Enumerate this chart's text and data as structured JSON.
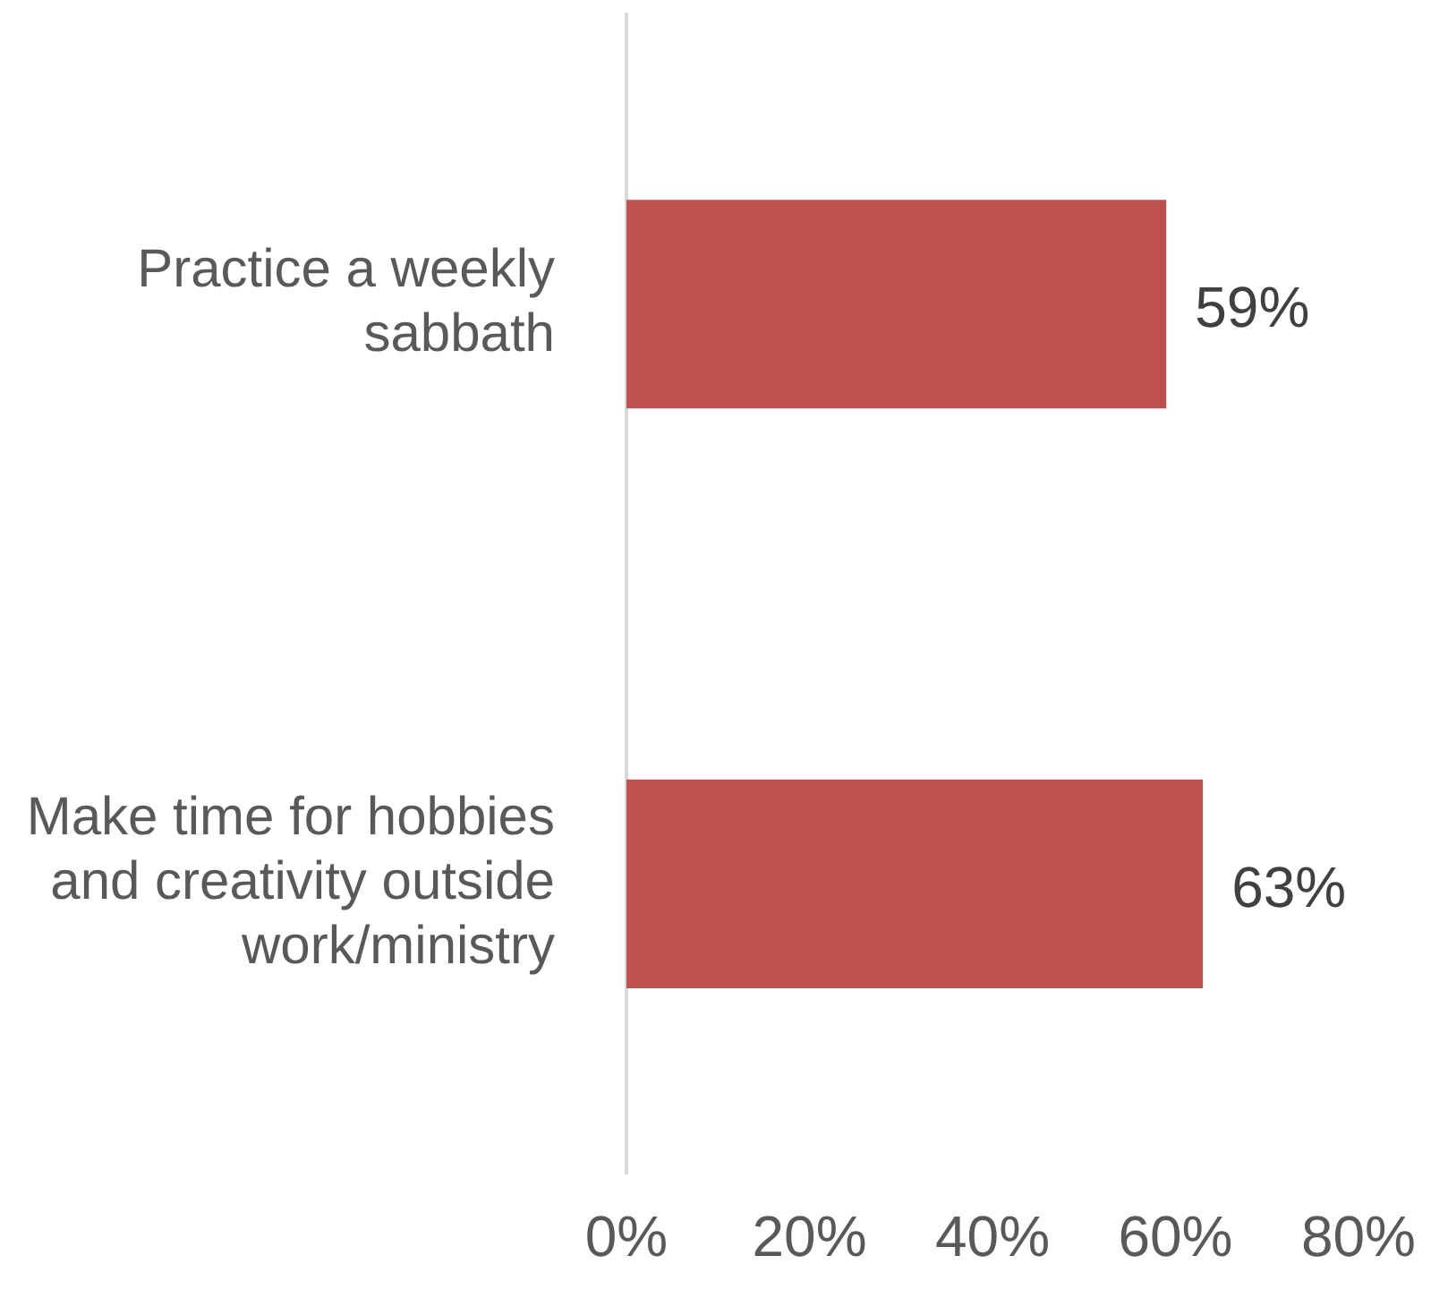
{
  "chart_data": {
    "type": "bar",
    "orientation": "horizontal",
    "categories": [
      "Practice a weekly sabbath",
      "Make time for hobbies and creativity outside work/ministry"
    ],
    "values": [
      59,
      63
    ],
    "color": "#c0504d",
    "value_labels": [
      "59%",
      "63%"
    ],
    "xlim": [
      0,
      80
    ],
    "xticks": [
      {
        "value": 0,
        "label": "0%"
      },
      {
        "value": 20,
        "label": "20%"
      },
      {
        "value": 40,
        "label": "40%"
      },
      {
        "value": 60,
        "label": "60%"
      },
      {
        "value": 80,
        "label": "80%"
      }
    ],
    "grid": false,
    "legend": false
  }
}
